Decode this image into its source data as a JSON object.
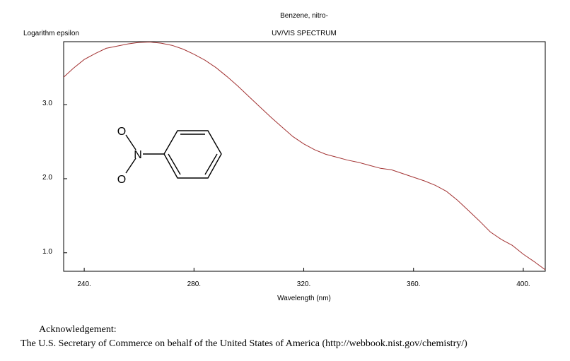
{
  "chart_data": {
    "type": "line",
    "title": "Benzene, nitro-",
    "subtitle": "UV/VIS SPECTRUM",
    "xlabel": "Wavelength (nm)",
    "ylabel": "Logarithm epsilon",
    "xlim": [
      232.5,
      408.0
    ],
    "ylim": [
      0.75,
      3.85
    ],
    "xticks": [
      240,
      280,
      320,
      360,
      400
    ],
    "xtick_labels": [
      "240.",
      "280.",
      "320.",
      "360.",
      "400."
    ],
    "yticks": [
      1.0,
      2.0,
      3.0
    ],
    "ytick_labels": [
      "1.0",
      "2.0",
      "3.0"
    ],
    "grid": false,
    "line_color": "#a33333",
    "series": [
      {
        "x": [
          232.5,
          236,
          240,
          244,
          248,
          252,
          256,
          260,
          264,
          268,
          272,
          276,
          280,
          284,
          288,
          292,
          296,
          300,
          304,
          308,
          312,
          316,
          320,
          324,
          328,
          332,
          336,
          340,
          344,
          348,
          352,
          356,
          360,
          364,
          368,
          372,
          376,
          380,
          384,
          388,
          392,
          396,
          400,
          404,
          408
        ],
        "y": [
          3.37,
          3.49,
          3.61,
          3.69,
          3.76,
          3.79,
          3.82,
          3.84,
          3.845,
          3.83,
          3.8,
          3.75,
          3.68,
          3.6,
          3.5,
          3.38,
          3.25,
          3.11,
          2.97,
          2.83,
          2.7,
          2.57,
          2.47,
          2.39,
          2.33,
          2.29,
          2.25,
          2.22,
          2.18,
          2.14,
          2.12,
          2.07,
          2.02,
          1.97,
          1.91,
          1.83,
          1.71,
          1.57,
          1.43,
          1.28,
          1.18,
          1.1,
          0.98,
          0.88,
          0.77
        ]
      }
    ]
  },
  "acknowledgement": {
    "title": "Acknowledgement:",
    "text": "The U.S. Secretary of Commerce on behalf of the United States of America (http://webbook.nist.gov/chemistry/)"
  },
  "molecule": {
    "atoms": {
      "oxygen_top": "O",
      "nitrogen": "N",
      "oxygen_bottom": "O"
    }
  }
}
